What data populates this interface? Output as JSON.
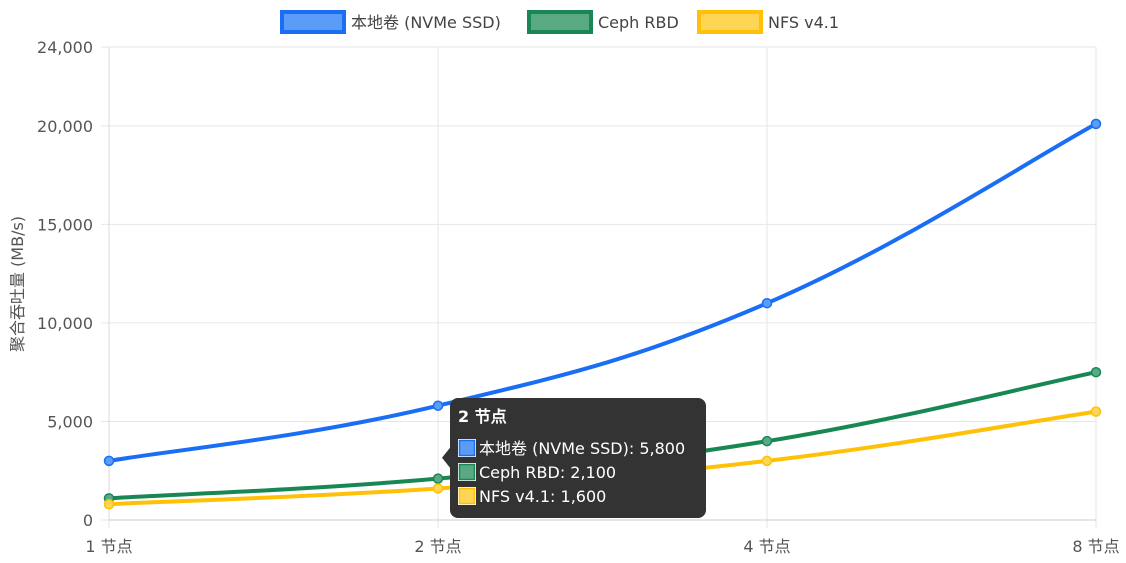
{
  "chart_data": {
    "type": "line",
    "categories": [
      "1 节点",
      "2 节点",
      "4 节点",
      "8 节点"
    ],
    "ylabel": "聚合吞吐量 (MB/s)",
    "ylim": [
      0,
      24000
    ],
    "yticks": [
      "0",
      "5,000",
      "10,000",
      "15,000",
      "20,000",
      "24,000"
    ],
    "ytick_values": [
      0,
      5000,
      10000,
      15000,
      20000,
      24000
    ],
    "grid": true,
    "legend_position": "top",
    "series": [
      {
        "name": "本地卷 (NVMe SSD)",
        "values": [
          3000,
          5800,
          11000,
          20100
        ],
        "color": "#1a6ef5",
        "fill": "#5b9cf8"
      },
      {
        "name": "Ceph RBD",
        "values": [
          1100,
          2100,
          4000,
          7500
        ],
        "color": "#198754",
        "fill": "#5aa985"
      },
      {
        "name": "NFS v4.1",
        "values": [
          800,
          1600,
          3000,
          5500
        ],
        "color": "#ffc107",
        "fill": "#ffd556"
      }
    ],
    "tooltip": {
      "title": "2 节点",
      "items": [
        "本地卷 (NVMe SSD): 5,800",
        "Ceph RBD: 2,100",
        "NFS v4.1: 1,600"
      ]
    }
  }
}
